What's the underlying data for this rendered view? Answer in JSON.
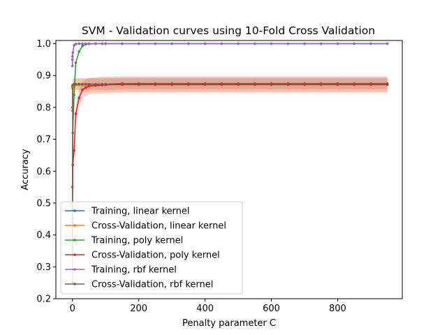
{
  "chart_data": {
    "type": "line",
    "title": "SVM - Validation curves using 10-Fold Cross Validation",
    "xlabel": "Penalty parameter C",
    "ylabel": "Accuracy",
    "xlim": [
      -50,
      995
    ],
    "ylim": [
      0.2,
      1.01
    ],
    "xticks": [
      0,
      200,
      400,
      600,
      800
    ],
    "yticks": [
      0.2,
      0.3,
      0.4,
      0.5,
      0.6,
      0.7,
      0.8,
      0.9,
      1.0
    ],
    "xtick_labels": [
      "0",
      "200",
      "400",
      "600",
      "800"
    ],
    "ytick_labels": [
      "0.2",
      "0.3",
      "0.4",
      "0.5",
      "0.6",
      "0.7",
      "0.8",
      "0.9",
      "1.0"
    ],
    "grid": false,
    "legend_position": "lower-left",
    "x": [
      0.001,
      0.01,
      0.1,
      1,
      5,
      10,
      20,
      30,
      40,
      50,
      70,
      90,
      100,
      150,
      200,
      250,
      300,
      350,
      400,
      450,
      500,
      550,
      600,
      650,
      700,
      750,
      800,
      850,
      900,
      950
    ],
    "series": [
      {
        "name": "Training, linear kernel",
        "color": "#1f77b4",
        "values": [
          0.8,
          0.864,
          0.868,
          0.87,
          0.871,
          0.872,
          0.872,
          0.872,
          0.872,
          0.872,
          0.872,
          0.872,
          0.872,
          0.873,
          0.873,
          0.873,
          0.873,
          0.873,
          0.873,
          0.873,
          0.873,
          0.873,
          0.873,
          0.873,
          0.873,
          0.873,
          0.873,
          0.873,
          0.873,
          0.873
        ]
      },
      {
        "name": "Cross-Validation, linear kernel",
        "color": "#ff7f0e",
        "values": [
          0.79,
          0.86,
          0.866,
          0.868,
          0.869,
          0.87,
          0.87,
          0.87,
          0.87,
          0.87,
          0.87,
          0.871,
          0.871,
          0.871,
          0.871,
          0.871,
          0.871,
          0.871,
          0.871,
          0.871,
          0.871,
          0.871,
          0.871,
          0.871,
          0.871,
          0.871,
          0.871,
          0.871,
          0.871,
          0.871
        ]
      },
      {
        "name": "Training, poly kernel",
        "color": "#2ca02c",
        "values": [
          0.36,
          0.45,
          0.55,
          0.72,
          0.84,
          0.94,
          0.975,
          0.993,
          0.998,
          0.999,
          1.0,
          1.0,
          1.0,
          1.0,
          1.0,
          1.0,
          1.0,
          1.0,
          1.0,
          1.0,
          1.0,
          1.0,
          1.0,
          1.0,
          1.0,
          1.0,
          1.0,
          1.0,
          1.0,
          1.0
        ]
      },
      {
        "name": "Cross-Validation, poly kernel",
        "color": "#d62728",
        "values": [
          0.35,
          0.44,
          0.5,
          0.62,
          0.665,
          0.78,
          0.83,
          0.855,
          0.862,
          0.867,
          0.869,
          0.87,
          0.871,
          0.872,
          0.872,
          0.872,
          0.872,
          0.872,
          0.872,
          0.872,
          0.872,
          0.872,
          0.872,
          0.872,
          0.872,
          0.872,
          0.872,
          0.872,
          0.872,
          0.872
        ]
      },
      {
        "name": "Training, rbf kernel",
        "color": "#9467bd",
        "values": [
          0.93,
          0.95,
          0.96,
          0.972,
          0.995,
          0.999,
          1.0,
          1.0,
          1.0,
          1.0,
          1.0,
          1.0,
          1.0,
          1.0,
          1.0,
          1.0,
          1.0,
          1.0,
          1.0,
          1.0,
          1.0,
          1.0,
          1.0,
          1.0,
          1.0,
          1.0,
          1.0,
          1.0,
          1.0,
          1.0
        ]
      },
      {
        "name": "Cross-Validation, rbf kernel",
        "color": "#8c564b",
        "values": [
          0.25,
          0.35,
          0.48,
          0.87,
          0.873,
          0.873,
          0.873,
          0.873,
          0.873,
          0.873,
          0.873,
          0.873,
          0.873,
          0.875,
          0.875,
          0.875,
          0.875,
          0.875,
          0.875,
          0.875,
          0.875,
          0.875,
          0.875,
          0.875,
          0.875,
          0.875,
          0.875,
          0.875,
          0.875,
          0.875
        ]
      }
    ],
    "bands": [
      {
        "series": "Cross-Validation, linear kernel",
        "color": "#ff7f0e",
        "std": 0.022
      },
      {
        "series": "Cross-Validation, poly kernel",
        "color": "#d62728",
        "std": 0.026
      },
      {
        "series": "Cross-Validation, rbf kernel",
        "color": "#8c564b",
        "std": 0.018
      }
    ]
  }
}
